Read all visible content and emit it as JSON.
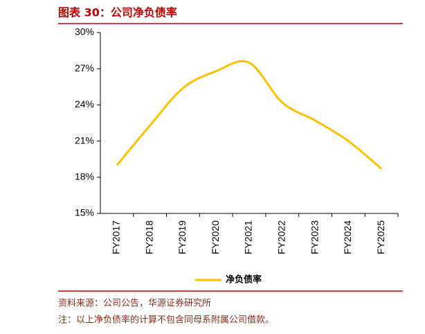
{
  "chart_data": {
    "type": "line",
    "title": "图表 30：公司净负债率",
    "categories": [
      "FY2017",
      "FY2018",
      "FY2019",
      "FY2020",
      "FY2021",
      "FY2022",
      "FY2023",
      "FY2024",
      "FY2025"
    ],
    "series": [
      {
        "name": "净负债率",
        "color": "#ffc000",
        "values": [
          19.0,
          22.3,
          25.4,
          26.8,
          27.5,
          24.2,
          22.7,
          21.0,
          18.7
        ]
      }
    ],
    "ylim": [
      15,
      30
    ],
    "yticks": [
      {
        "value": 15,
        "label": "15%"
      },
      {
        "value": 18,
        "label": "18%"
      },
      {
        "value": 21,
        "label": "21%"
      },
      {
        "value": 24,
        "label": "24%"
      },
      {
        "value": 27,
        "label": "27%"
      },
      {
        "value": 30,
        "label": "30%"
      }
    ],
    "legend": "bottom",
    "source": "资料来源：公司公告，华源证券研究所",
    "note": "注：以上净负债率的计算不包含同母系附属公司借款。"
  }
}
